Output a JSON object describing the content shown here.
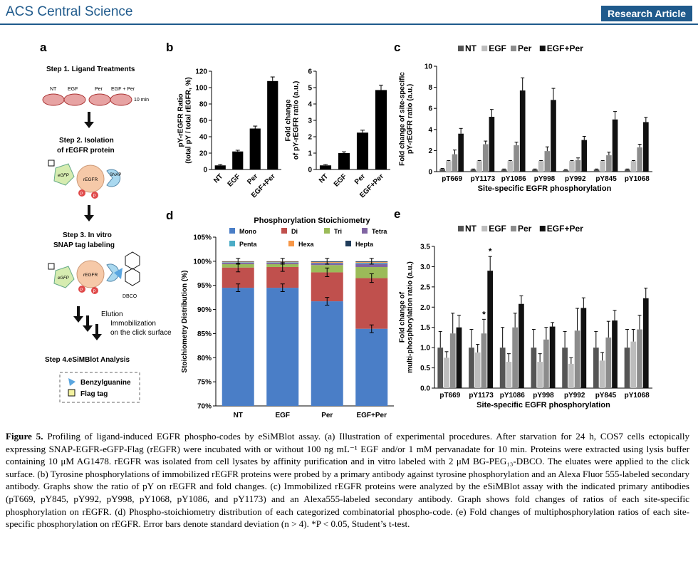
{
  "header": {
    "journal": "ACS Central Science",
    "article_type": "Research Article"
  },
  "panels": {
    "a": "a",
    "b": "b",
    "c": "c",
    "d": "d",
    "e": "e"
  },
  "panel_a": {
    "step1": "Step 1. Ligand Treatments",
    "dish_labels": [
      "NT",
      "EGF",
      "Per",
      "EGF + Per"
    ],
    "time": "10 min",
    "step2_line1": "Step 2. Isolation",
    "step2_line2": "of rEGFR protein",
    "tag_egfp": "eGFP",
    "tag_regfr": "rEGFR",
    "tag_snap": "SNAP",
    "tag_p": "P",
    "step3_line1": "Step 3. In vitro",
    "step3_line2": "SNAP tag labeling",
    "dbco": "DBCO",
    "elution": "Elution",
    "immob1": "Immobilization",
    "immob2": "on the click surface",
    "step4": "Step 4.eSiMBlot Analysis",
    "legend1": "Benzylguanine",
    "legend2": "Flag tag"
  },
  "chart_data": [
    {
      "id": "b-left",
      "type": "bar",
      "categories": [
        "NT",
        "EGF",
        "Per",
        "EGF+Per"
      ],
      "values": [
        5,
        22,
        50,
        108
      ],
      "errors": [
        1,
        1.5,
        3,
        5
      ],
      "ylabel": "pY-rEGFR Ratio (total pY / total rEGFR, %)",
      "ylabel_lines": [
        "pY-rEGFR Ratio",
        "(total pY / total rEGFR, %)"
      ],
      "ylim": [
        0,
        120
      ],
      "yticks": [
        "0",
        "20",
        "40",
        "60",
        "80",
        "100",
        "120"
      ]
    },
    {
      "id": "b-right",
      "type": "bar",
      "categories": [
        "NT",
        "EGF",
        "Per",
        "EGF+Per"
      ],
      "values": [
        0.25,
        1.0,
        2.25,
        4.85
      ],
      "errors": [
        0.05,
        0.08,
        0.15,
        0.3
      ],
      "ylabel_lines": [
        "Fold change",
        "of pY-rEGFR ratio (a.u.)"
      ],
      "ylim": [
        0,
        6
      ],
      "yticks": [
        "0",
        "1",
        "2",
        "3",
        "4",
        "5",
        "6"
      ]
    },
    {
      "id": "c",
      "type": "bar",
      "categories": [
        "pT669",
        "pY1173",
        "pY1086",
        "pY998",
        "pY992",
        "pY845",
        "pY1068"
      ],
      "series": [
        {
          "name": "NT",
          "values": [
            0.25,
            0.2,
            0.2,
            0.2,
            0.15,
            0.2,
            0.2
          ],
          "errors": [
            0.05,
            0.05,
            0.05,
            0.05,
            0.05,
            0.05,
            0.05
          ],
          "color": "#555555"
        },
        {
          "name": "EGF",
          "values": [
            1.0,
            1.0,
            1.0,
            1.0,
            1.0,
            1.0,
            1.0
          ],
          "errors": [
            0.05,
            0.05,
            0.05,
            0.05,
            0.05,
            0.05,
            0.05
          ],
          "color": "#bdbdbd"
        },
        {
          "name": "Per",
          "values": [
            1.65,
            2.6,
            2.5,
            1.95,
            1.1,
            1.55,
            2.3
          ],
          "errors": [
            0.4,
            0.3,
            0.3,
            0.4,
            0.2,
            0.3,
            0.3
          ],
          "color": "#8c8c8c"
        },
        {
          "name": "EGF+Per",
          "values": [
            3.6,
            5.2,
            7.7,
            6.8,
            3.0,
            4.95,
            4.7
          ],
          "errors": [
            0.5,
            0.7,
            1.2,
            1.1,
            0.35,
            0.75,
            0.45
          ],
          "color": "#111111"
        }
      ],
      "xlabel": "Site-specific EGFR phosphorylation",
      "ylabel_lines": [
        "Fold change of site-specific",
        "pY-rEGFR ratio (a.u.)"
      ],
      "ylim": [
        0,
        10
      ],
      "yticks": [
        "0",
        "2",
        "4",
        "6",
        "8",
        "10"
      ],
      "legend": "top"
    },
    {
      "id": "d",
      "type": "bar",
      "title": "Phosphorylation Stoichiometry",
      "categories": [
        "NT",
        "EGF",
        "Per",
        "EGF+Per"
      ],
      "series": [
        {
          "name": "Mono",
          "values": [
            94.5,
            94.5,
            91.7,
            86.0
          ],
          "color": "#4a7ec7"
        },
        {
          "name": "Di",
          "values": [
            4.2,
            4.3,
            6.0,
            10.5
          ],
          "color": "#c0504d"
        },
        {
          "name": "Tri",
          "values": [
            0.7,
            0.6,
            1.5,
            2.3
          ],
          "color": "#9bbb59"
        },
        {
          "name": "Tetra",
          "values": [
            0.3,
            0.3,
            0.4,
            0.7
          ],
          "color": "#8064a2"
        },
        {
          "name": "Penta",
          "values": [
            0.1,
            0.1,
            0.1,
            0.2
          ],
          "color": "#4bacc6"
        },
        {
          "name": "Hexa",
          "values": [
            0.1,
            0.1,
            0.15,
            0.15
          ],
          "color": "#f79646"
        },
        {
          "name": "Hepta",
          "values": [
            0.1,
            0.1,
            0.15,
            0.15
          ],
          "color": "#1f3c5a"
        }
      ],
      "errors": [
        0.8,
        0.8,
        0.8,
        0.8
      ],
      "ylabel": "Stoichiometry Distribution (%)",
      "ylim": [
        70,
        105
      ],
      "yticks": [
        "70%",
        "75%",
        "80%",
        "85%",
        "90%",
        "95%",
        "100%",
        "105%"
      ],
      "legend": "top"
    },
    {
      "id": "e",
      "type": "bar",
      "categories": [
        "pT669",
        "pY1173",
        "pY1086",
        "pY998",
        "pY992",
        "pY845",
        "pY1068"
      ],
      "series": [
        {
          "name": "NT",
          "values": [
            1.0,
            1.0,
            1.0,
            1.0,
            1.0,
            1.0,
            1.0
          ],
          "errors": [
            0.4,
            0.45,
            0.5,
            0.45,
            0.4,
            0.4,
            0.45
          ],
          "color": "#555555"
        },
        {
          "name": "EGF",
          "values": [
            0.75,
            0.88,
            0.65,
            0.65,
            0.6,
            0.68,
            1.15
          ],
          "errors": [
            0.15,
            0.2,
            0.2,
            0.2,
            0.15,
            0.2,
            0.3
          ],
          "color": "#bdbdbd"
        },
        {
          "name": "Per",
          "values": [
            1.35,
            1.35,
            1.5,
            1.2,
            1.42,
            1.25,
            1.45
          ],
          "errors": [
            0.5,
            0.35,
            0.35,
            0.3,
            0.55,
            0.4,
            0.35
          ],
          "color": "#8c8c8c"
        },
        {
          "name": "EGF+Per",
          "values": [
            1.5,
            2.9,
            2.08,
            1.52,
            1.98,
            1.67,
            2.22
          ],
          "errors": [
            0.3,
            0.35,
            0.2,
            0.1,
            0.25,
            0.25,
            0.25
          ],
          "color": "#111111"
        }
      ],
      "significance": [
        {
          "category": "pY1173",
          "series": "Per",
          "mark": "*"
        },
        {
          "category": "pY1173",
          "series": "EGF+Per",
          "mark": "*"
        }
      ],
      "xlabel": "Site-specific EGFR phosphorylation",
      "ylabel_lines": [
        "Fold change of",
        "multi-phosphorylation ratio (a.u.)"
      ],
      "ylim": [
        0,
        3.5
      ],
      "yticks": [
        "0.0",
        "0.5",
        "1.0",
        "1.5",
        "2.0",
        "2.5",
        "3.0",
        "3.5"
      ],
      "legend": "top"
    }
  ],
  "caption": {
    "label": "Figure 5.",
    "text": "Profiling of ligand-induced EGFR phospho-codes by eSiMBlot assay. (a) Illustration of experimental procedures. After starvation for 24 h, COS7 cells ectopically expressing SNAP-EGFR-eGFP-Flag (rEGFR) were incubated with or without 100 ng mL⁻¹ EGF and/or 1 mM pervanadate for 10 min. Proteins were extracted using lysis buffer containing 10 μM AG1478. rEGFR was isolated from cell lysates by affinity purification and in vitro labeled with 2 μM BG-PEG₁₃-DBCO. The eluates were applied to the click surface. (b) Tyrosine phosphorylations of immobilized rEGFR proteins were probed by a primary antibody against tyrosine phosphorylation and an Alexa Fluor 555-labeled secondary antibody. Graphs show the ratio of pY on rEGFR and fold changes. (c) Immobilized rEGFR proteins were analyzed by the eSiMBlot assay with the indicated primary antibodies (pT669, pY845, pY992, pY998, pY1068, pY1086, and pY1173) and an Alexa555-labeled secondary antibody. Graph shows fold changes of ratios of each site-specific phosphorylation on rEGFR. (d) Phospho-stoichiometry distribution of each categorized combinatorial phospho-code. (e) Fold changes of multiphosphorylation ratios of each site-specific phosphorylation on rEGFR. Error bars denote standard deviation (n > 4). *P < 0.05, Student’s t-test."
  }
}
